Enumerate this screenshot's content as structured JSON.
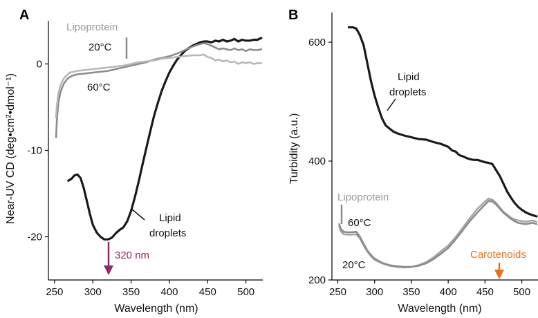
{
  "chart_data": [
    {
      "type": "line",
      "panel": "A",
      "xlabel": "Wavelength (nm)",
      "ylabel": "Near-UV CD (deg•cm²•dmol⁻¹)",
      "xlim": [
        242,
        522
      ],
      "ylim": [
        -25,
        5
      ],
      "xticks": [
        250,
        300,
        350,
        400,
        450,
        500
      ],
      "yticks": [
        0,
        -10,
        -20
      ],
      "annotations": {
        "lipoprotein": "Lipoprotein",
        "t20": "20°C",
        "t60": "60°C",
        "lipid_droplets_line1": "Lipid",
        "lipid_droplets_line2": "droplets",
        "peak": "320 nm"
      },
      "series": [
        {
          "color": "#1a1a1a",
          "points": [
            [
              268,
              -13.5
            ],
            [
              272,
              -13.3
            ],
            [
              276,
              -12.9
            ],
            [
              280,
              -12.8
            ],
            [
              284,
              -13.2
            ],
            [
              288,
              -14.3
            ],
            [
              292,
              -15.8
            ],
            [
              296,
              -17.3
            ],
            [
              300,
              -18.6
            ],
            [
              305,
              -19.5
            ],
            [
              310,
              -20.0
            ],
            [
              315,
              -20.3
            ],
            [
              320,
              -20.3
            ],
            [
              325,
              -20.1
            ],
            [
              330,
              -19.6
            ],
            [
              335,
              -19.2
            ],
            [
              340,
              -18.9
            ],
            [
              345,
              -18.2
            ],
            [
              350,
              -17.0
            ],
            [
              355,
              -15.4
            ],
            [
              360,
              -13.6
            ],
            [
              365,
              -11.6
            ],
            [
              370,
              -9.7
            ],
            [
              375,
              -7.8
            ],
            [
              380,
              -6.0
            ],
            [
              385,
              -4.5
            ],
            [
              390,
              -3.1
            ],
            [
              395,
              -2.0
            ],
            [
              400,
              -1.0
            ],
            [
              405,
              -0.2
            ],
            [
              410,
              0.5
            ],
            [
              415,
              1.0
            ],
            [
              420,
              1.5
            ],
            [
              425,
              1.8
            ],
            [
              430,
              2.1
            ],
            [
              435,
              2.3
            ],
            [
              440,
              2.5
            ],
            [
              445,
              2.6
            ],
            [
              450,
              2.6
            ],
            [
              455,
              2.5
            ],
            [
              460,
              2.7
            ],
            [
              465,
              2.6
            ],
            [
              470,
              2.8
            ],
            [
              475,
              2.6
            ],
            [
              480,
              2.7
            ],
            [
              485,
              2.9
            ],
            [
              490,
              2.6
            ],
            [
              495,
              2.8
            ],
            [
              500,
              2.7
            ],
            [
              505,
              2.7
            ],
            [
              510,
              2.8
            ],
            [
              515,
              2.8
            ],
            [
              520,
              3.0
            ]
          ]
        },
        {
          "color": "#8c8c8c",
          "points": [
            [
              252,
              -8.5
            ],
            [
              253,
              -6.5
            ],
            [
              255,
              -4.5
            ],
            [
              258,
              -3.2
            ],
            [
              262,
              -2.3
            ],
            [
              266,
              -1.8
            ],
            [
              270,
              -1.5
            ],
            [
              275,
              -1.3
            ],
            [
              280,
              -1.2
            ],
            [
              290,
              -1.1
            ],
            [
              300,
              -1.0
            ],
            [
              310,
              -0.9
            ],
            [
              320,
              -0.8
            ],
            [
              330,
              -0.6
            ],
            [
              340,
              -0.4
            ],
            [
              350,
              -0.2
            ],
            [
              360,
              0.0
            ],
            [
              370,
              0.2
            ],
            [
              380,
              0.5
            ],
            [
              390,
              0.7
            ],
            [
              400,
              0.9
            ],
            [
              410,
              1.2
            ],
            [
              420,
              1.6
            ],
            [
              430,
              2.0
            ],
            [
              440,
              2.3
            ],
            [
              445,
              2.4
            ],
            [
              450,
              2.3
            ],
            [
              455,
              2.1
            ],
            [
              460,
              1.9
            ],
            [
              465,
              1.7
            ],
            [
              470,
              1.8
            ],
            [
              475,
              1.7
            ],
            [
              480,
              1.6
            ],
            [
              485,
              1.8
            ],
            [
              490,
              1.6
            ],
            [
              495,
              1.7
            ],
            [
              500,
              1.5
            ],
            [
              505,
              1.7
            ],
            [
              510,
              1.6
            ],
            [
              515,
              1.6
            ],
            [
              520,
              1.7
            ]
          ]
        },
        {
          "color": "#b8b8b8",
          "points": [
            [
              252,
              -6.2
            ],
            [
              253,
              -4.8
            ],
            [
              255,
              -3.4
            ],
            [
              258,
              -2.4
            ],
            [
              262,
              -1.7
            ],
            [
              266,
              -1.3
            ],
            [
              270,
              -1.0
            ],
            [
              275,
              -0.9
            ],
            [
              280,
              -0.8
            ],
            [
              290,
              -0.7
            ],
            [
              300,
              -0.6
            ],
            [
              310,
              -0.5
            ],
            [
              320,
              -0.4
            ],
            [
              330,
              -0.3
            ],
            [
              340,
              -0.2
            ],
            [
              350,
              0.0
            ],
            [
              360,
              0.2
            ],
            [
              370,
              0.3
            ],
            [
              380,
              0.4
            ],
            [
              390,
              0.6
            ],
            [
              400,
              0.7
            ],
            [
              410,
              0.8
            ],
            [
              420,
              0.9
            ],
            [
              430,
              1.0
            ],
            [
              440,
              1.0
            ],
            [
              445,
              1.1
            ],
            [
              450,
              0.8
            ],
            [
              455,
              0.7
            ],
            [
              460,
              0.4
            ],
            [
              465,
              0.5
            ],
            [
              470,
              0.3
            ],
            [
              475,
              0.4
            ],
            [
              480,
              0.2
            ],
            [
              485,
              0.3
            ],
            [
              490,
              0.0
            ],
            [
              495,
              0.2
            ],
            [
              500,
              0.1
            ],
            [
              505,
              0.2
            ],
            [
              510,
              0.0
            ],
            [
              515,
              0.1
            ],
            [
              520,
              0.1
            ]
          ]
        }
      ]
    },
    {
      "type": "line",
      "panel": "B",
      "xlabel": "Wavelength (nm)",
      "ylabel": "Turbidity (a.u.)",
      "xlim": [
        242,
        522
      ],
      "ylim": [
        200,
        650
      ],
      "xticks": [
        250,
        300,
        350,
        400,
        450,
        500
      ],
      "yticks": [
        200,
        400,
        600
      ],
      "annotations": {
        "lipid_droplets_line1": "Lipid",
        "lipid_droplets_line2": "droplets",
        "lipoprotein": "Lipoprotein",
        "t60": "60°C",
        "t20": "20°C",
        "carotenoids": "Carotenoids"
      },
      "series": [
        {
          "color": "#1a1a1a",
          "points": [
            [
              265,
              625
            ],
            [
              270,
              625
            ],
            [
              275,
              623
            ],
            [
              280,
              612
            ],
            [
              285,
              595
            ],
            [
              290,
              565
            ],
            [
              295,
              535
            ],
            [
              300,
              510
            ],
            [
              305,
              490
            ],
            [
              310,
              472
            ],
            [
              315,
              460
            ],
            [
              320,
              455
            ],
            [
              325,
              450
            ],
            [
              330,
              447
            ],
            [
              340,
              443
            ],
            [
              350,
              440
            ],
            [
              360,
              437
            ],
            [
              370,
              436
            ],
            [
              380,
              432
            ],
            [
              390,
              429
            ],
            [
              400,
              424
            ],
            [
              405,
              418
            ],
            [
              410,
              416
            ],
            [
              415,
              410
            ],
            [
              420,
              408
            ],
            [
              425,
              405
            ],
            [
              430,
              403
            ],
            [
              435,
              402
            ],
            [
              440,
              402
            ],
            [
              445,
              400
            ],
            [
              450,
              398
            ],
            [
              455,
              397
            ],
            [
              460,
              395
            ],
            [
              465,
              385
            ],
            [
              470,
              375
            ],
            [
              475,
              362
            ],
            [
              480,
              349
            ],
            [
              485,
              339
            ],
            [
              490,
              330
            ],
            [
              495,
              323
            ],
            [
              500,
              318
            ],
            [
              505,
              314
            ],
            [
              510,
              311
            ],
            [
              515,
              309
            ],
            [
              520,
              307
            ]
          ]
        },
        {
          "color": "#a6a6a6",
          "points": [
            [
              252,
              290
            ],
            [
              254,
              282
            ],
            [
              258,
              277
            ],
            [
              265,
              276
            ],
            [
              275,
              277
            ],
            [
              280,
              270
            ],
            [
              285,
              258
            ],
            [
              290,
              248
            ],
            [
              295,
              240
            ],
            [
              300,
              234
            ],
            [
              310,
              228
            ],
            [
              320,
              224
            ],
            [
              330,
              222
            ],
            [
              340,
              221
            ],
            [
              350,
              222
            ],
            [
              360,
              225
            ],
            [
              370,
              230
            ],
            [
              380,
              238
            ],
            [
              390,
              248
            ],
            [
              400,
              258
            ],
            [
              410,
              272
            ],
            [
              420,
              288
            ],
            [
              430,
              305
            ],
            [
              440,
              320
            ],
            [
              450,
              332
            ],
            [
              455,
              337
            ],
            [
              460,
              335
            ],
            [
              465,
              330
            ],
            [
              470,
              322
            ],
            [
              475,
              315
            ],
            [
              480,
              310
            ],
            [
              485,
              305
            ],
            [
              490,
              302
            ],
            [
              495,
              300
            ],
            [
              500,
              299
            ],
            [
              505,
              298
            ],
            [
              510,
              299
            ],
            [
              515,
              300
            ],
            [
              520,
              298
            ]
          ]
        },
        {
          "color": "#8c8c8c",
          "points": [
            [
              252,
              294
            ],
            [
              254,
              286
            ],
            [
              258,
              281
            ],
            [
              265,
              280
            ],
            [
              275,
              281
            ],
            [
              280,
              273
            ],
            [
              285,
              261
            ],
            [
              290,
              250
            ],
            [
              295,
              242
            ],
            [
              300,
              236
            ],
            [
              310,
              229
            ],
            [
              320,
              225
            ],
            [
              330,
              223
            ],
            [
              340,
              222
            ],
            [
              350,
              222
            ],
            [
              360,
              224
            ],
            [
              370,
              228
            ],
            [
              380,
              235
            ],
            [
              390,
              244
            ],
            [
              400,
              254
            ],
            [
              410,
              268
            ],
            [
              420,
              284
            ],
            [
              430,
              300
            ],
            [
              440,
              314
            ],
            [
              450,
              327
            ],
            [
              455,
              333
            ],
            [
              460,
              332
            ],
            [
              465,
              327
            ],
            [
              470,
              320
            ],
            [
              475,
              313
            ],
            [
              480,
              308
            ],
            [
              485,
              303
            ],
            [
              490,
              299
            ],
            [
              495,
              296
            ],
            [
              500,
              295
            ],
            [
              505,
              294
            ],
            [
              510,
              295
            ],
            [
              515,
              296
            ],
            [
              520,
              294
            ]
          ]
        }
      ]
    }
  ],
  "colors": {
    "lipid_droplets": "#1a1a1a",
    "lipoprotein_label": "#9a9a9a",
    "peak_arrow": "#8e2a6b",
    "carotenoid_arrow": "#e8711c"
  }
}
